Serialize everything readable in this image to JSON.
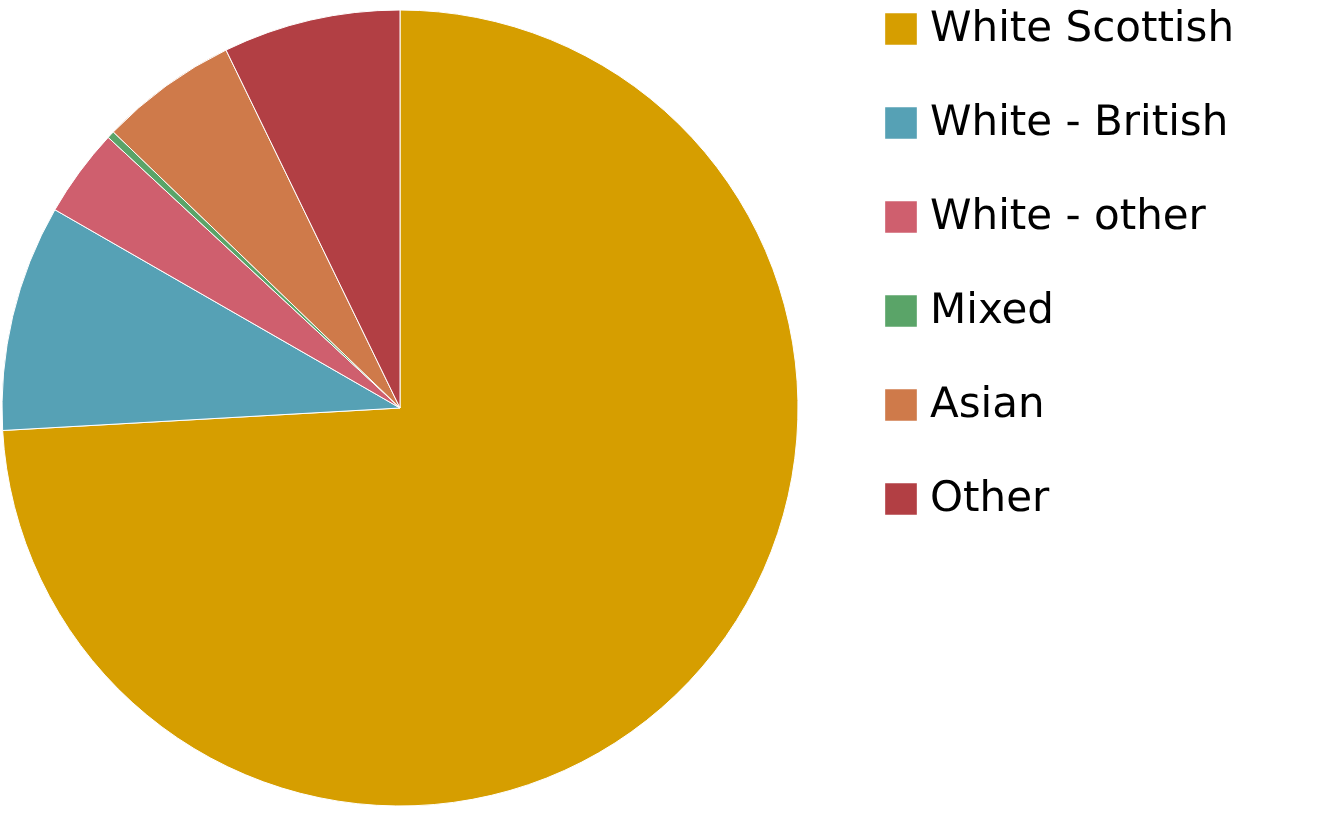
{
  "chart_data": {
    "type": "pie",
    "categories": [
      "White Scottish",
      "White - British",
      "White - other",
      "Mixed",
      "Asian",
      "Other"
    ],
    "values": [
      74.1,
      9.2,
      3.6,
      0.3,
      5.6,
      7.2
    ],
    "colors": [
      "#d69e00",
      "#56a1b5",
      "#cf5f6e",
      "#5aa468",
      "#cf7a4a",
      "#b23f44"
    ],
    "legend": "right"
  }
}
